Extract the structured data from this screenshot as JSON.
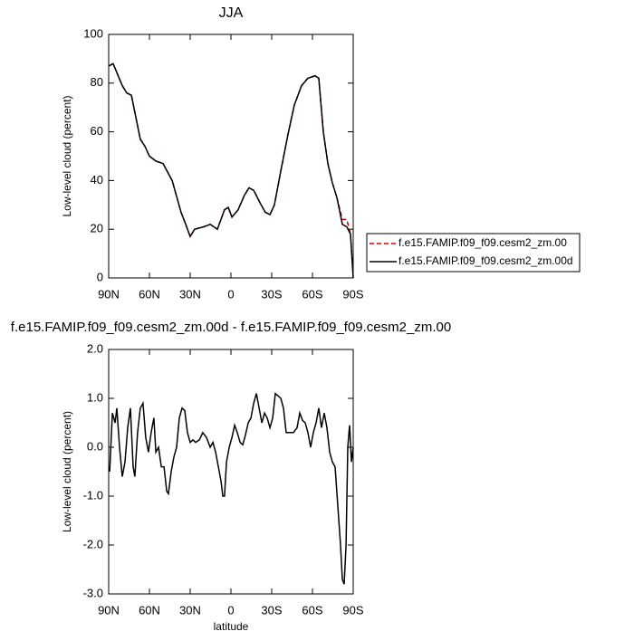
{
  "chart_data": [
    {
      "type": "line",
      "title": "JJA",
      "ylabel": "Low-level cloud (percent)",
      "x": [
        90,
        86.7,
        80,
        76.7,
        73.3,
        70,
        66.7,
        63.3,
        60,
        55.3,
        50,
        43.3,
        36.7,
        33.3,
        30,
        26.7,
        20,
        15.3,
        10,
        4.7,
        2,
        -0.7,
        -5.3,
        -10,
        -13.3,
        -16.7,
        -21.3,
        -25.3,
        -28.7,
        -32,
        -36.7,
        -42,
        -46.7,
        -52,
        -56.7,
        -62,
        -64.7,
        -68,
        -71.3,
        -74.7,
        -78,
        -82,
        -85.3,
        -88,
        -90
      ],
      "series": [
        {
          "name": "f.e15.FAMIP.f09_f09.cesm2_zm.00",
          "color": "#cc0000",
          "dash": true,
          "values": [
            87,
            88,
            79,
            76,
            75,
            66,
            57,
            54,
            50,
            48,
            47,
            40,
            27,
            22,
            17,
            20,
            21,
            22,
            20,
            28,
            29,
            25,
            28,
            34,
            37,
            36,
            31,
            27,
            26,
            30,
            44,
            59,
            71,
            79,
            82,
            83,
            82,
            60,
            47,
            39,
            33,
            24,
            24,
            18,
            0
          ]
        },
        {
          "name": "f.e15.FAMIP.f09_f09.cesm2_zm.00d",
          "color": "#000000",
          "dash": false,
          "values": [
            87,
            88,
            79,
            76,
            75,
            66,
            57,
            54,
            50,
            48,
            47,
            40,
            27,
            22,
            17,
            20,
            21,
            22,
            20,
            28,
            29,
            25,
            28,
            34,
            37,
            36,
            31,
            27,
            26,
            30,
            44,
            59,
            71,
            79,
            82,
            83,
            82,
            60,
            47,
            39,
            33,
            22,
            21,
            18,
            0
          ]
        }
      ],
      "xlim": [
        90,
        -90
      ],
      "xticks": [
        {
          "value": 90,
          "label": "90N"
        },
        {
          "value": 60,
          "label": "60N"
        },
        {
          "value": 30,
          "label": "30N"
        },
        0,
        {
          "value": -30,
          "label": "30S"
        },
        {
          "value": -60,
          "label": "60S"
        },
        {
          "value": -90,
          "label": "90S"
        }
      ],
      "ylim": [
        0,
        100
      ],
      "yticks": [
        0,
        20,
        40,
        60,
        80,
        100
      ],
      "legend": "right"
    },
    {
      "type": "line",
      "title": "f.e15.FAMIP.f09_f09.cesm2_zm.00d - f.e15.FAMIP.f09_f09.cesm2_zm.00",
      "xlabel": "latitude",
      "ylabel": "Low-level cloud (percent)",
      "x": [
        89.3,
        87.3,
        85.3,
        84,
        82,
        80,
        78,
        76,
        74,
        72,
        70.7,
        68.7,
        66.7,
        64.7,
        62.7,
        60.7,
        58.7,
        56.7,
        55.3,
        53.3,
        51.3,
        49.3,
        47.3,
        46,
        44,
        42,
        40,
        38,
        36,
        34,
        32,
        30,
        28,
        26,
        23.3,
        20.7,
        18,
        15.3,
        13.3,
        11.3,
        9.3,
        7.3,
        6,
        4.7,
        3.3,
        1.3,
        -0.7,
        -2.7,
        -4.7,
        -6.7,
        -8.7,
        -10.7,
        -12.7,
        -14.7,
        -16.7,
        -18.7,
        -20.7,
        -22.7,
        -24.7,
        -26.7,
        -28.7,
        -30.7,
        -32.7,
        -34.7,
        -36.7,
        -38.7,
        -40.7,
        -43.3,
        -46,
        -48.7,
        -50.7,
        -52.7,
        -54.7,
        -56.7,
        -58.7,
        -60.7,
        -62.7,
        -64.7,
        -66.7,
        -68.7,
        -70.7,
        -72.7,
        -74.7,
        -76.7,
        -78.7,
        -80.7,
        -82,
        -83.3,
        -84.7,
        -86,
        -87.3,
        -88.7,
        -90
      ],
      "series": [
        {
          "name": null,
          "color": "#000000",
          "dash": false,
          "values": [
            -0.5,
            0.7,
            0.5,
            0.8,
            0.0,
            -0.6,
            -0.3,
            0.4,
            0.8,
            -0.4,
            -0.6,
            0.3,
            0.8,
            0.9,
            0.2,
            -0.1,
            0.3,
            0.6,
            -0.1,
            0.0,
            -0.4,
            -0.4,
            -0.9,
            -0.95,
            -0.5,
            -0.2,
            0.0,
            0.6,
            0.8,
            0.75,
            0.3,
            0.1,
            0.15,
            0.1,
            0.15,
            0.3,
            0.2,
            0.0,
            0.1,
            -0.1,
            -0.4,
            -0.7,
            -1.0,
            -1.0,
            -0.3,
            0.0,
            0.2,
            0.45,
            0.3,
            0.1,
            0.05,
            0.25,
            0.5,
            0.6,
            0.9,
            1.1,
            0.8,
            0.5,
            0.7,
            0.6,
            0.4,
            0.6,
            1.1,
            1.05,
            1.0,
            0.8,
            0.3,
            0.3,
            0.3,
            0.4,
            0.7,
            0.55,
            0.5,
            0.3,
            0.0,
            0.3,
            0.5,
            0.8,
            0.4,
            0.7,
            0.4,
            -0.1,
            -0.3,
            -0.4,
            -1.2,
            -2.0,
            -2.7,
            -2.8,
            -2.0,
            0.0,
            0.45,
            -0.3,
            0.0
          ]
        }
      ],
      "xlim": [
        90,
        -90
      ],
      "xticks": [
        {
          "value": 90,
          "label": "90N"
        },
        {
          "value": 60,
          "label": "60N"
        },
        {
          "value": 30,
          "label": "30N"
        },
        0,
        {
          "value": -30,
          "label": "30S"
        },
        {
          "value": -60,
          "label": "60S"
        },
        {
          "value": -90,
          "label": "90S"
        }
      ],
      "ylim": [
        -3,
        2
      ],
      "yticks": [
        {
          "value": -3,
          "label": "-3.0"
        },
        {
          "value": -2,
          "label": "-2.0"
        },
        {
          "value": -1,
          "label": "-1.0"
        },
        {
          "value": 0,
          "label": "0.0"
        },
        {
          "value": 1,
          "label": "1.0"
        },
        {
          "value": 2,
          "label": "2.0"
        }
      ]
    }
  ]
}
